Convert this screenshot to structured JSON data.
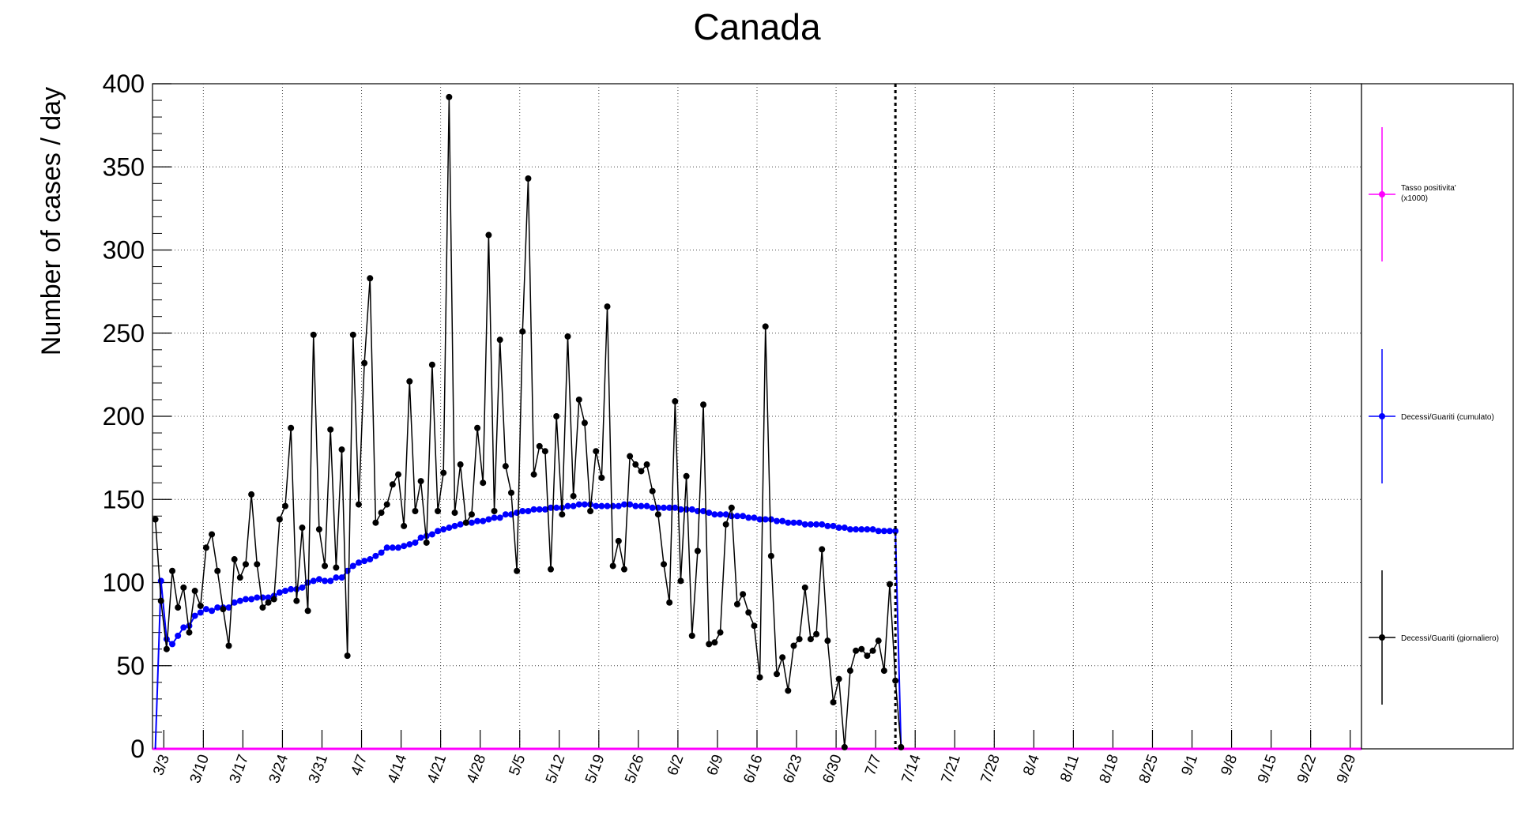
{
  "chart_data": {
    "type": "line",
    "title": "Canada",
    "xlabel": "",
    "ylabel": "Number of cases / day",
    "ylim": [
      0,
      400
    ],
    "y_ticks": [
      0,
      50,
      100,
      150,
      200,
      250,
      300,
      350,
      400
    ],
    "x_start_date": "3/1",
    "x_end_date": "10/1",
    "x_tick_labels": [
      "3/3",
      "3/10",
      "3/17",
      "3/24",
      "3/31",
      "4/7",
      "4/14",
      "4/21",
      "4/28",
      "5/5",
      "5/12",
      "5/19",
      "5/26",
      "6/2",
      "6/9",
      "6/16",
      "6/23",
      "6/30",
      "7/7",
      "7/14",
      "7/21",
      "7/28",
      "8/4",
      "8/11",
      "8/18",
      "8/25",
      "9/1",
      "9/8",
      "9/15",
      "9/22",
      "9/29"
    ],
    "grid": true,
    "vertical_marker_date": "7/10",
    "legend_position": "right",
    "series": [
      {
        "name": "Decessi/Guariti (giornaliero)",
        "color": "#000000",
        "start_date": "3/1",
        "values": [
          138,
          89,
          60,
          107,
          85,
          97,
          70,
          95,
          86,
          121,
          129,
          107,
          84,
          62,
          114,
          103,
          111,
          153,
          111,
          85,
          88,
          90,
          138,
          146,
          193,
          89,
          133,
          83,
          249,
          132,
          110,
          192,
          109,
          180,
          56,
          249,
          147,
          232,
          283,
          136,
          142,
          147,
          159,
          165,
          134,
          221,
          143,
          161,
          124,
          231,
          143,
          166,
          392,
          142,
          171,
          136,
          141,
          193,
          160,
          309,
          143,
          246,
          170,
          154,
          107,
          251,
          343,
          165,
          182,
          179,
          108,
          200,
          141,
          248,
          152,
          210,
          196,
          143,
          179,
          163,
          266,
          110,
          125,
          108,
          176,
          171,
          167,
          171,
          155,
          141,
          111,
          88,
          209,
          101,
          164,
          68,
          119,
          207,
          63,
          64,
          70,
          135,
          145,
          87,
          93,
          82,
          74,
          43,
          254,
          116,
          45,
          55,
          35,
          62,
          66,
          97,
          66,
          69,
          120,
          65,
          28,
          42,
          1,
          47,
          59,
          60,
          56,
          59,
          65,
          47,
          99,
          41,
          1
        ]
      },
      {
        "name": "Decessi/Guariti (cumulato)",
        "color": "#0000ff",
        "start_date": "3/1",
        "values": [
          0,
          101,
          66,
          63,
          68,
          73,
          74,
          80,
          82,
          84,
          83,
          85,
          85,
          85,
          88,
          89,
          90,
          90,
          91,
          91,
          91,
          92,
          94,
          95,
          96,
          96,
          97,
          100,
          101,
          102,
          101,
          101,
          103,
          103,
          107,
          110,
          112,
          113,
          114,
          116,
          118,
          121,
          121,
          121,
          122,
          123,
          124,
          127,
          128,
          129,
          131,
          132,
          133,
          134,
          135,
          136,
          136,
          137,
          137,
          138,
          139,
          139,
          141,
          141,
          142,
          143,
          143,
          144,
          144,
          144,
          145,
          145,
          145,
          146,
          146,
          147,
          147,
          147,
          146,
          146,
          146,
          146,
          146,
          147,
          147,
          146,
          146,
          146,
          145,
          145,
          145,
          145,
          145,
          144,
          144,
          144,
          143,
          143,
          142,
          141,
          141,
          141,
          140,
          140,
          140,
          139,
          139,
          138,
          138,
          138,
          137,
          137,
          136,
          136,
          136,
          135,
          135,
          135,
          135,
          134,
          134,
          133,
          133,
          132,
          132,
          132,
          132,
          132,
          131,
          131,
          131,
          131,
          0
        ]
      },
      {
        "name": "Tasso positivita'\n(x1000)",
        "color": "#ff00ff",
        "constant_value": 0
      }
    ]
  }
}
